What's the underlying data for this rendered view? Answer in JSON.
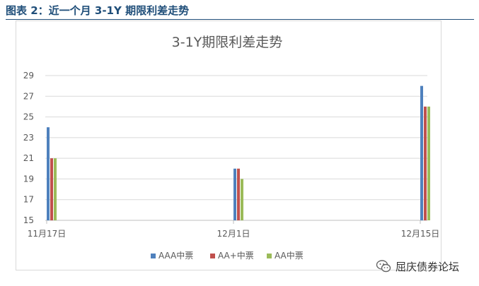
{
  "caption": "图表 2：近一个月 3-1Y 期限利差走势",
  "watermark": {
    "text": "屈庆债券论坛",
    "icon": "wechat-icon"
  },
  "chart_data": {
    "type": "bar",
    "title": "3-1Y期限利差走势",
    "xlabel": "",
    "ylabel": "",
    "categories": [
      "11月17日",
      "12月1日",
      "12月15日"
    ],
    "ylim": [
      15,
      29
    ],
    "yticks": [
      15,
      17,
      19,
      21,
      23,
      25,
      27,
      29
    ],
    "grid": true,
    "legend": "bottom",
    "series": [
      {
        "name": "AAA中票",
        "color": "#4f81bd",
        "values": [
          24,
          20,
          28
        ]
      },
      {
        "name": "AA+中票",
        "color": "#c0504d",
        "values": [
          21,
          20,
          26
        ]
      },
      {
        "name": "AA中票",
        "color": "#9bbb59",
        "values": [
          21,
          19,
          26
        ]
      }
    ]
  }
}
